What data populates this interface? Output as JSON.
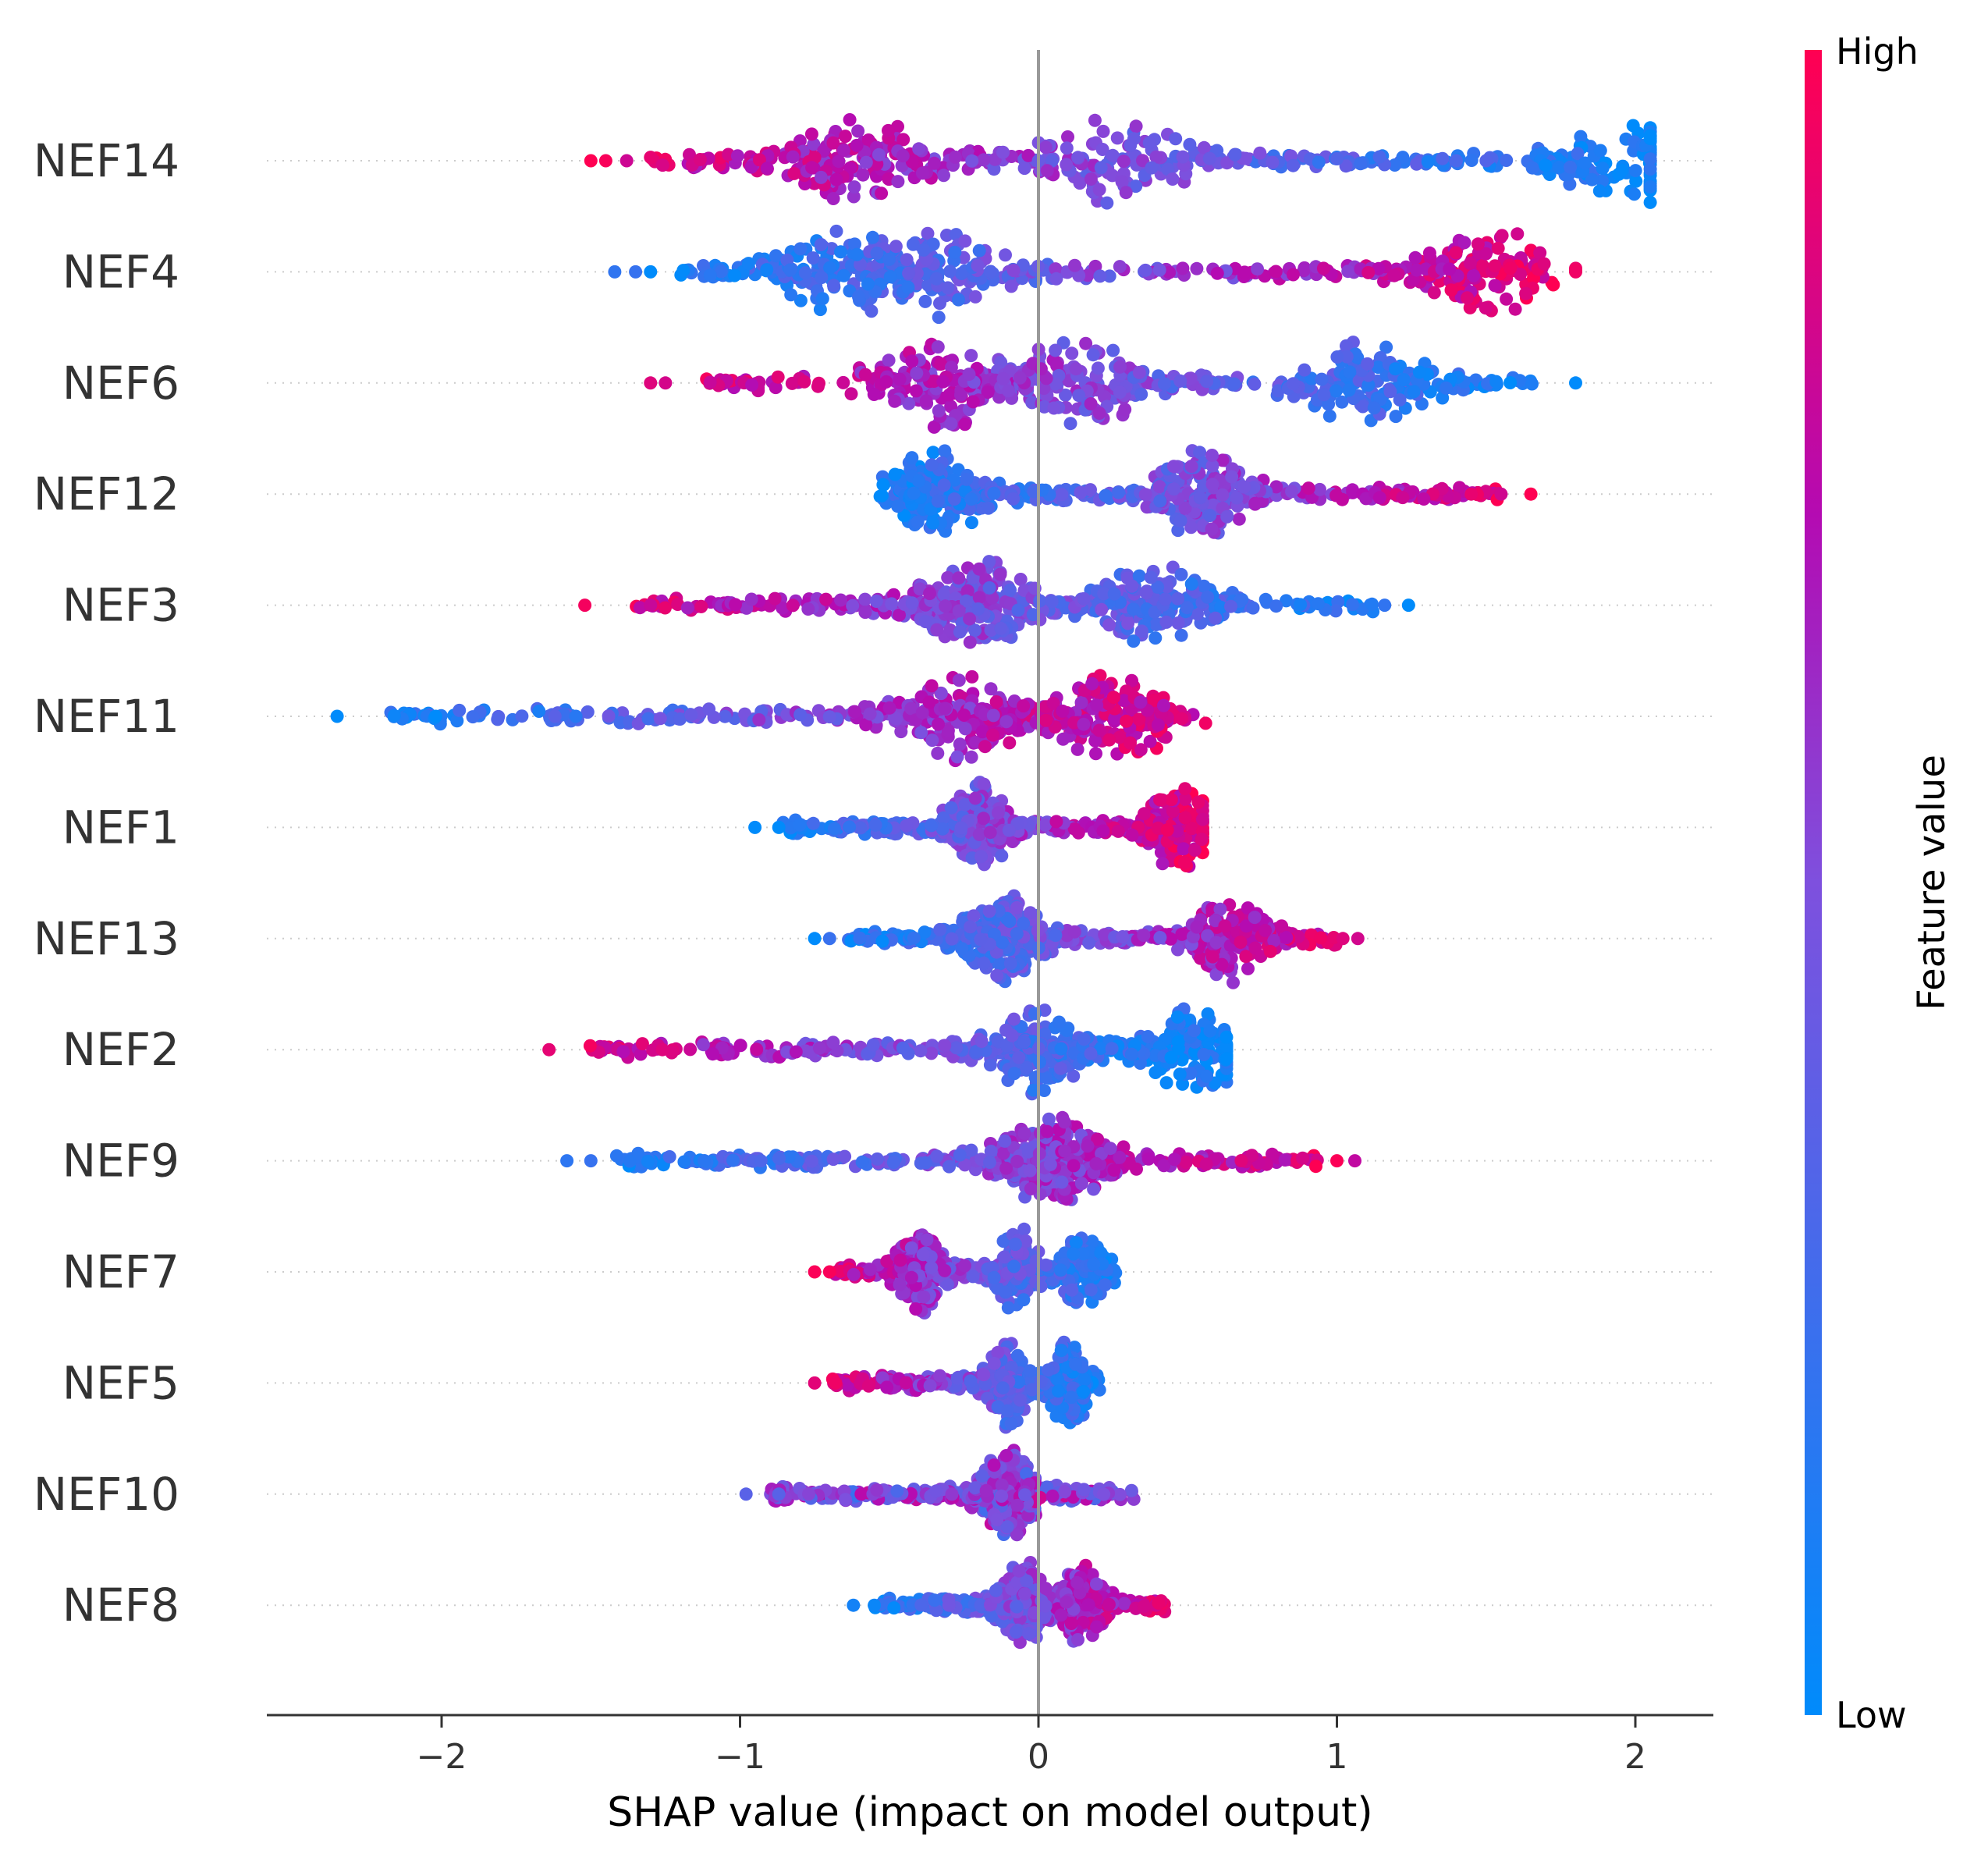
{
  "chart_data": {
    "type": "scatter",
    "subtype": "shap-beeswarm",
    "title": "",
    "xlabel": "SHAP value (impact on model output)",
    "ylabel": "",
    "xlim": [
      -2.6,
      2.25
    ],
    "xticks": [
      -2,
      -1,
      0,
      1,
      2
    ],
    "xtick_labels": [
      "−2",
      "−1",
      "0",
      "1",
      "2"
    ],
    "colorbar": {
      "title": "Feature value",
      "high_label": "High",
      "low_label": "Low",
      "low_color": "#008bfb",
      "high_color": "#ff0052"
    },
    "features": [
      {
        "name": "NEF14",
        "shap_min": -1.52,
        "shap_max": 2.05,
        "trend": "high_negative",
        "dense": [
          -0.62,
          0.25,
          2.0
        ],
        "outliers": [
          -1.5,
          -1.45,
          -1.38,
          0.0,
          1.4,
          1.5
        ]
      },
      {
        "name": "NEF4",
        "shap_min": -1.42,
        "shap_max": 1.8,
        "trend": "high_positive",
        "dense": [
          -0.65,
          -0.33,
          1.5
        ],
        "outliers": [
          -1.42,
          -1.35,
          -1.3,
          1.8
        ]
      },
      {
        "name": "NEF6",
        "shap_min": -1.3,
        "shap_max": 1.8,
        "trend": "high_negative",
        "dense": [
          -0.32,
          0.13,
          1.1
        ],
        "outliers": [
          -1.3,
          -1.25,
          1.8
        ]
      },
      {
        "name": "NEF12",
        "shap_min": -0.63,
        "shap_max": 1.65,
        "trend": "high_positive",
        "dense": [
          -0.34,
          0.55
        ],
        "outliers": [
          1.45,
          1.55,
          1.65
        ]
      },
      {
        "name": "NEF3",
        "shap_min": -1.52,
        "shap_max": 1.24,
        "trend": "high_negative",
        "dense": [
          -0.2,
          0.4
        ],
        "outliers": [
          -1.52,
          -1.3,
          1.16,
          1.24
        ]
      },
      {
        "name": "NEF11",
        "shap_min": -2.35,
        "shap_max": 0.62,
        "trend": "high_positive",
        "dense": [
          -0.25,
          0.25
        ],
        "outliers": [
          -2.35,
          -2.02,
          -1.62,
          -1.55
        ]
      },
      {
        "name": "NEF1",
        "shap_min": -0.95,
        "shap_max": 0.55,
        "trend": "high_positive",
        "dense": [
          -0.2,
          0.47
        ],
        "outliers": [
          -0.95,
          -0.87
        ]
      },
      {
        "name": "NEF13",
        "shap_min": -0.75,
        "shap_max": 1.07,
        "trend": "high_positive",
        "dense": [
          -0.12,
          0.65
        ],
        "outliers": [
          -0.75,
          -0.7,
          1.02,
          1.07
        ]
      },
      {
        "name": "NEF2",
        "shap_min": -1.64,
        "shap_max": 0.63,
        "trend": "high_negative",
        "dense": [
          0.0,
          0.52
        ],
        "outliers": [
          -1.64,
          -1.26
        ]
      },
      {
        "name": "NEF9",
        "shap_min": -1.58,
        "shap_max": 1.06,
        "trend": "high_positive",
        "dense": [
          0.05
        ],
        "outliers": [
          -1.58,
          -1.5,
          -1.12,
          -0.93,
          1.0,
          1.06
        ]
      },
      {
        "name": "NEF7",
        "shap_min": -0.75,
        "shap_max": 0.3,
        "trend": "high_negative",
        "dense": [
          -0.4,
          -0.07,
          0.15
        ],
        "outliers": [
          -0.75,
          -0.7
        ]
      },
      {
        "name": "NEF5",
        "shap_min": -0.75,
        "shap_max": 0.25,
        "trend": "high_negative",
        "dense": [
          -0.1,
          0.1
        ],
        "outliers": [
          -0.75,
          -0.68
        ]
      },
      {
        "name": "NEF10",
        "shap_min": -0.98,
        "shap_max": 0.38,
        "trend": "mixed",
        "dense": [
          -0.1
        ],
        "outliers": [
          -0.98,
          -0.87,
          -0.77
        ]
      },
      {
        "name": "NEF8",
        "shap_min": -0.62,
        "shap_max": 0.47,
        "trend": "high_positive",
        "dense": [
          -0.05,
          0.15
        ],
        "outliers": [
          -0.62,
          -0.55,
          -0.3
        ]
      }
    ]
  }
}
